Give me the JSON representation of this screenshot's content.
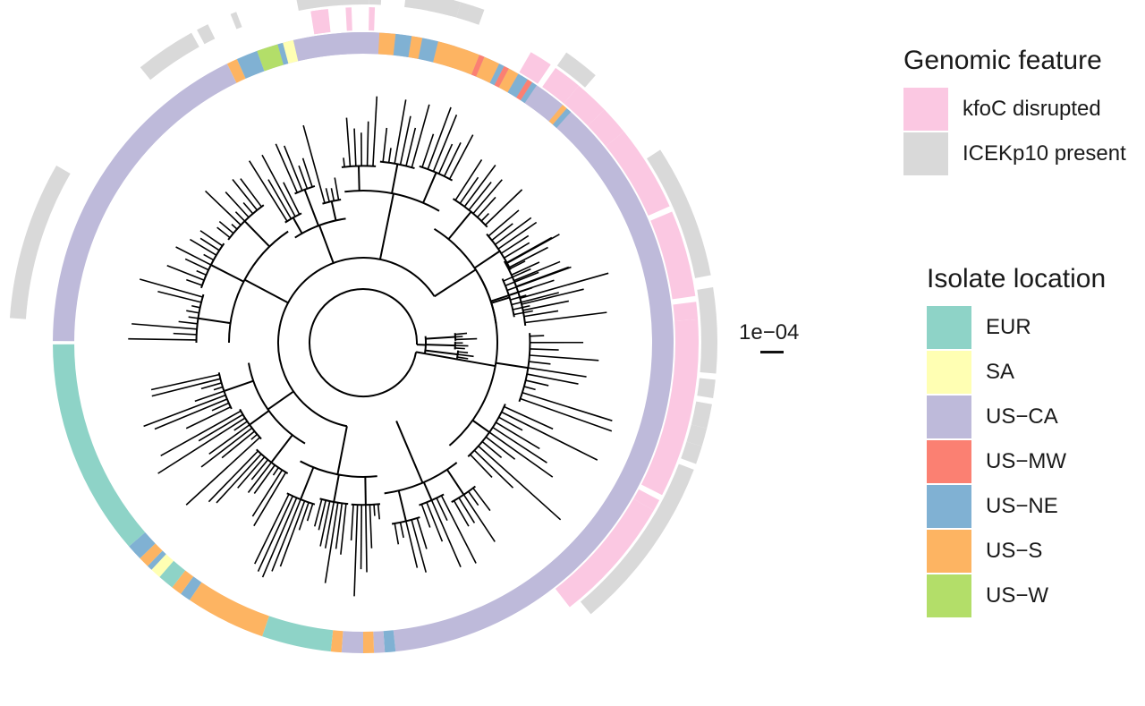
{
  "figure": {
    "scale_bar_label": "1e−04"
  },
  "legends": {
    "genomic_feature": {
      "title": "Genomic feature",
      "items": [
        {
          "label": "kfoC disrupted",
          "color": "#fbc8e2"
        },
        {
          "label": "ICEKp10 present",
          "color": "#d9d9d9"
        }
      ]
    },
    "isolate_location": {
      "title": "Isolate location",
      "items": [
        {
          "label": "EUR",
          "color": "#8ed3c7"
        },
        {
          "label": "SA",
          "color": "#ffffb3"
        },
        {
          "label": "US−CA",
          "color": "#bebada"
        },
        {
          "label": "US−MW",
          "color": "#fb8072"
        },
        {
          "label": "US−NE",
          "color": "#80b1d3"
        },
        {
          "label": "US−S",
          "color": "#fdb462"
        },
        {
          "label": "US−W",
          "color": "#b3de69"
        }
      ]
    }
  },
  "tree": {
    "location_ring": [
      {
        "from": -110,
        "to": 84,
        "location": "US−CA"
      },
      {
        "from": 84,
        "to": 86,
        "location": "US−NE"
      },
      {
        "from": 86,
        "to": 88,
        "location": "US−CA"
      },
      {
        "from": 88,
        "to": 90,
        "location": "US−S"
      },
      {
        "from": 90,
        "to": 94,
        "location": "US−CA"
      },
      {
        "from": 94,
        "to": 96,
        "location": "US−S"
      },
      {
        "from": 96,
        "to": 109,
        "location": "EUR"
      },
      {
        "from": 109,
        "to": 124,
        "location": "US−S"
      },
      {
        "from": 124,
        "to": 126,
        "location": "US−NE"
      },
      {
        "from": 126,
        "to": 128,
        "location": "US−S"
      },
      {
        "from": 128,
        "to": 131,
        "location": "EUR"
      },
      {
        "from": 131,
        "to": 133,
        "location": "SA"
      },
      {
        "from": 133,
        "to": 134,
        "location": "US−NE"
      },
      {
        "from": 134,
        "to": 136,
        "location": "US−S"
      },
      {
        "from": 136,
        "to": 139,
        "location": "US−NE"
      },
      {
        "from": 139,
        "to": 180,
        "location": "EUR"
      },
      {
        "from": 180,
        "to": 244,
        "location": "US−CA"
      },
      {
        "from": 244,
        "to": 246,
        "location": "US−S"
      },
      {
        "from": 246,
        "to": 250,
        "location": "US−NE"
      },
      {
        "from": 250,
        "to": 254,
        "location": "US−W"
      },
      {
        "from": 254,
        "to": 255,
        "location": "US−NE"
      },
      {
        "from": 255,
        "to": 257,
        "location": "SA"
      },
      {
        "from": 257,
        "to": 273,
        "location": "US−CA"
      },
      {
        "from": 273,
        "to": 276,
        "location": "US−S"
      },
      {
        "from": 276,
        "to": 279,
        "location": "US−NE"
      },
      {
        "from": 279,
        "to": 281,
        "location": "US−S"
      },
      {
        "from": 281,
        "to": 284,
        "location": "US−NE"
      },
      {
        "from": 284,
        "to": 292,
        "location": "US−S"
      },
      {
        "from": 292,
        "to": 293,
        "location": "US−MW"
      },
      {
        "from": 293,
        "to": 296,
        "location": "US−S"
      },
      {
        "from": 296,
        "to": 297,
        "location": "US−NE"
      },
      {
        "from": 297,
        "to": 298,
        "location": "US−MW"
      },
      {
        "from": 298,
        "to": 300,
        "location": "US−S"
      },
      {
        "from": 300,
        "to": 302,
        "location": "US−NE"
      },
      {
        "from": 302,
        "to": 303,
        "location": "US−MW"
      },
      {
        "from": 303,
        "to": 304,
        "location": "US−NE"
      },
      {
        "from": 304,
        "to": 310,
        "location": "US−CA"
      },
      {
        "from": 310,
        "to": 311,
        "location": "US−S"
      },
      {
        "from": 311,
        "to": 312,
        "location": "US−NE"
      }
    ],
    "kfoc_disrupted": [
      {
        "from": -99,
        "to": -96
      },
      {
        "from": 261,
        "to": 263
      },
      {
        "from": 267,
        "to": 268
      },
      {
        "from": 271,
        "to": 272
      },
      {
        "from": 300,
        "to": 304
      },
      {
        "from": 305,
        "to": 310
      },
      {
        "from": 310,
        "to": 316
      },
      {
        "from": 316,
        "to": 321
      },
      {
        "from": 321,
        "to": 336
      },
      {
        "from": 337,
        "to": 352
      },
      {
        "from": 353,
        "to": 356
      },
      {
        "from": 356,
        "to": 387
      },
      {
        "from": 388,
        "to": 390
      },
      {
        "from": 390,
        "to": 412
      }
    ],
    "icekp10_present": [
      {
        "from": -82,
        "to": -74
      },
      {
        "from": 184,
        "to": 210
      },
      {
        "from": 231,
        "to": 241
      },
      {
        "from": 242,
        "to": 244
      },
      {
        "from": 248,
        "to": 249
      },
      {
        "from": 259,
        "to": 271
      },
      {
        "from": 271,
        "to": 273
      },
      {
        "from": 277,
        "to": 279
      },
      {
        "from": 281,
        "to": 285
      },
      {
        "from": 286,
        "to": 290
      },
      {
        "from": 305,
        "to": 311
      },
      {
        "from": 327,
        "to": 349
      },
      {
        "from": 351,
        "to": 365
      },
      {
        "from": 366,
        "to": 369
      },
      {
        "from": 370,
        "to": 374
      },
      {
        "from": 374,
        "to": 377
      },
      {
        "from": 377,
        "to": 380
      },
      {
        "from": 381,
        "to": 410
      }
    ],
    "clades": [
      {
        "a0": -30,
        "a1": 50,
        "r_base": 150,
        "r_tip": 290,
        "n": 34
      },
      {
        "a0": 52,
        "a1": 82,
        "r_base": 170,
        "r_tip": 275,
        "n": 15
      },
      {
        "a0": 84,
        "a1": 118,
        "r_base": 150,
        "r_tip": 280,
        "n": 20
      },
      {
        "a0": 120,
        "a1": 170,
        "r_base": 130,
        "r_tip": 265,
        "n": 27
      },
      {
        "a0": 180,
        "a1": 236,
        "r_base": 150,
        "r_tip": 265,
        "n": 28
      },
      {
        "a0": 237,
        "a1": 262,
        "r_base": 140,
        "r_tip": 255,
        "n": 12
      },
      {
        "a0": 263,
        "a1": 300,
        "r_base": 170,
        "r_tip": 275,
        "n": 19
      },
      {
        "a0": 302,
        "a1": 352,
        "r_base": 150,
        "r_tip": 240,
        "n": 24
      },
      {
        "a0": 354,
        "a1": 370,
        "r_base": 70,
        "r_tip": 120,
        "n": 10
      }
    ]
  }
}
